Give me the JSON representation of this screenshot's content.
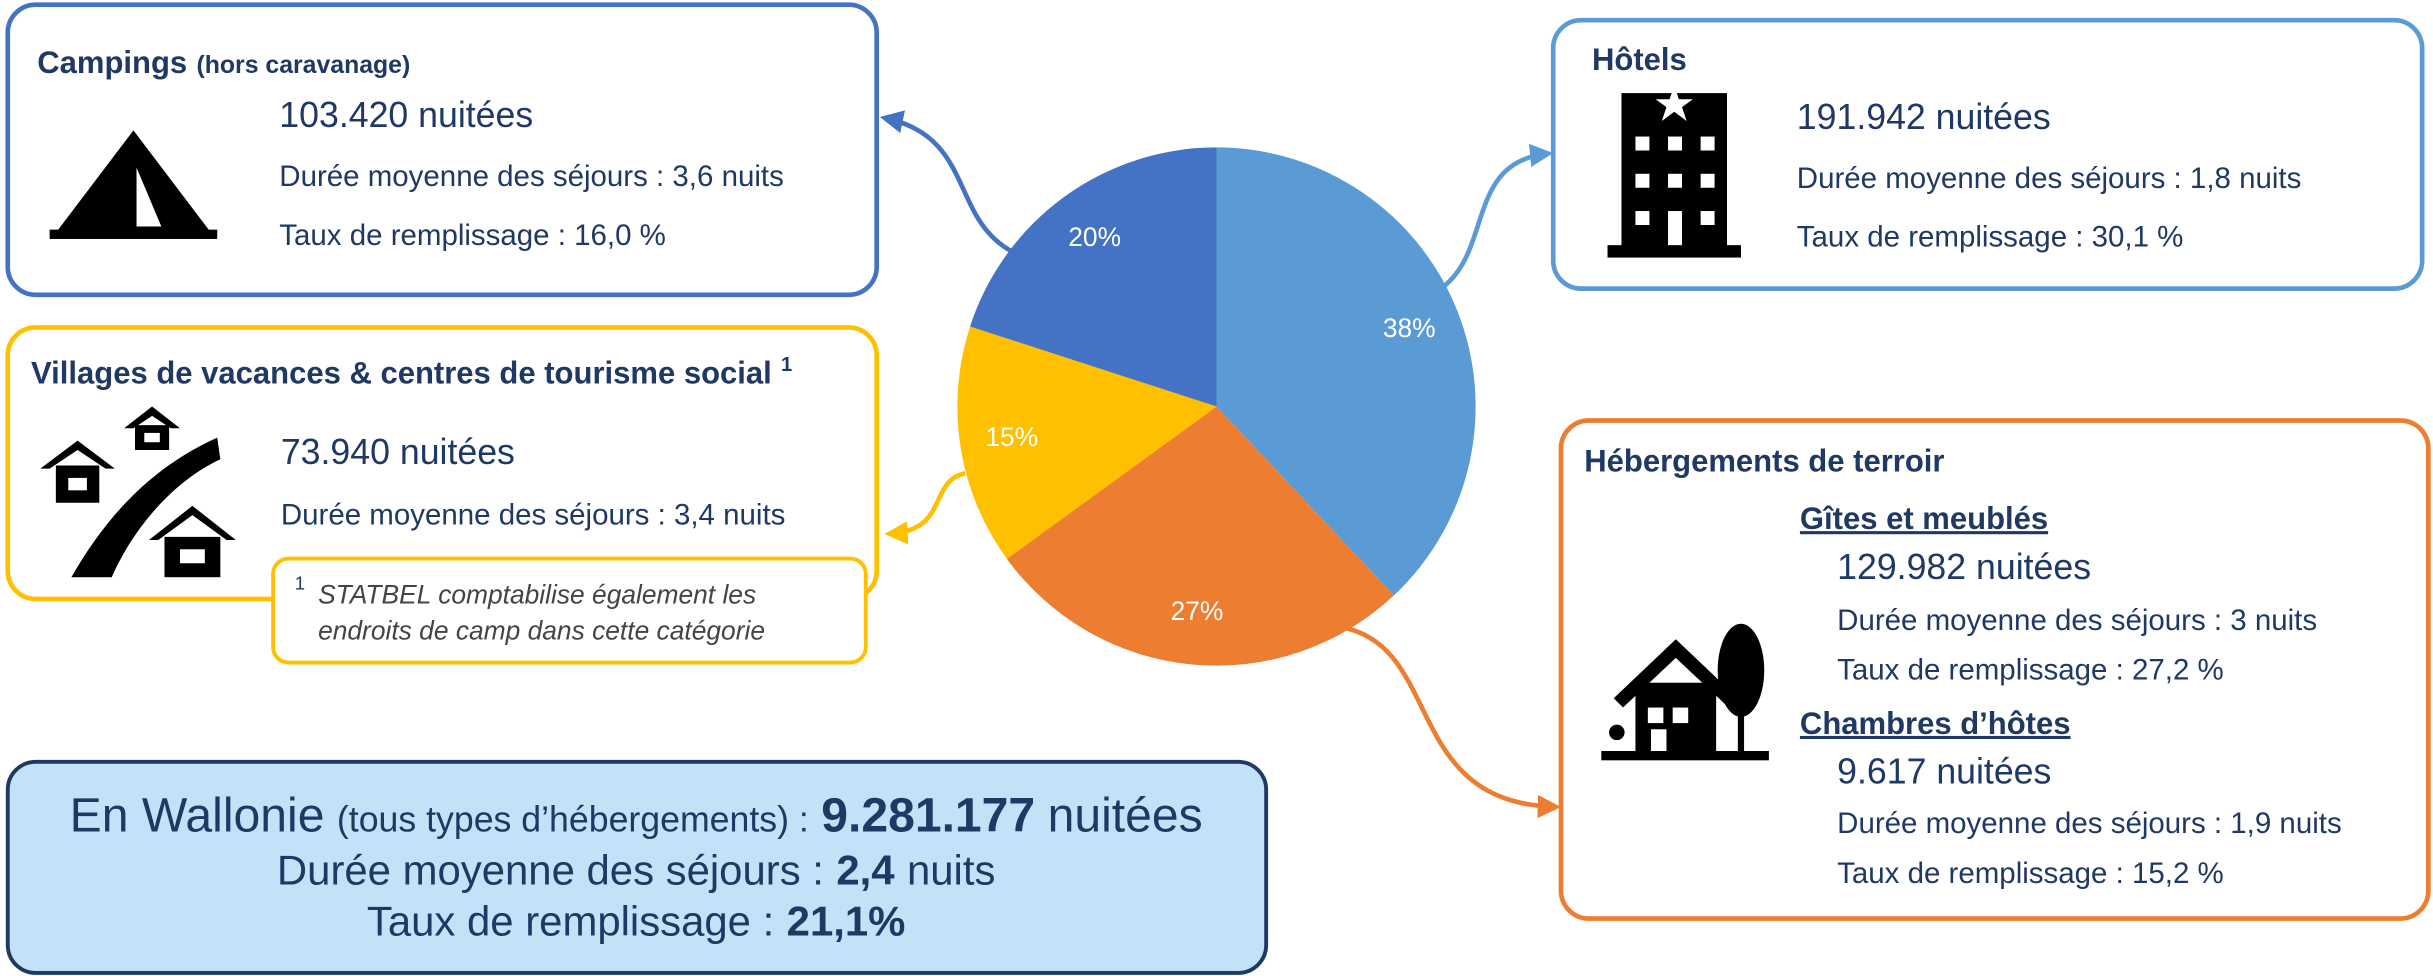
{
  "chart_data": {
    "type": "pie",
    "values": [
      38,
      27,
      15,
      20
    ],
    "value_labels": [
      "38%",
      "27%",
      "15%",
      "20%"
    ],
    "colors": [
      "#5b9bd5",
      "#ed7d31",
      "#ffc000",
      "#4472c4"
    ]
  },
  "campings": {
    "title": "Campings",
    "qualifier": "(hors caravanage)",
    "nights": "103.420 nuitées",
    "stay": "Durée moyenne des séjours : 3,6 nuits",
    "occupancy": "Taux de remplissage : 16,0 %"
  },
  "hotels": {
    "title": "Hôtels",
    "nights": "191.942 nuitées",
    "stay": "Durée moyenne des séjours : 1,8 nuits",
    "occupancy": "Taux de remplissage : 30,1 %"
  },
  "villages": {
    "title": "Villages de vacances & centres de tourisme social",
    "note_mark": "1",
    "nights": "73.940 nuitées",
    "stay": "Durée moyenne des séjours : 3,4 nuits",
    "note_lines": [
      "STATBEL comptabilise également les",
      "endroits de camp dans cette catégorie"
    ]
  },
  "terroir": {
    "title": "Hébergements de terroir",
    "gites": {
      "title": "Gîtes et meublés",
      "nights": "129.982 nuitées",
      "stay": "Durée moyenne des séjours : 3 nuits",
      "occupancy": "Taux de remplissage : 27,2 %"
    },
    "chambres": {
      "title": "Chambres d’hôtes",
      "nights": "9.617 nuitées",
      "stay": "Durée moyenne des séjours : 1,9 nuits",
      "occupancy": "Taux de remplissage : 15,2 %"
    }
  },
  "wallonie": {
    "region": "En Wallonie",
    "scope": "(tous types d’hébergements) :",
    "nights_value": "9.281.177",
    "nights_unit": "nuitées",
    "stay_label": "Durée moyenne des séjours :",
    "stay_value": "2,4",
    "stay_unit": "nuits",
    "occupancy_label": "Taux de remplissage :",
    "occupancy_value": "21,1%"
  }
}
